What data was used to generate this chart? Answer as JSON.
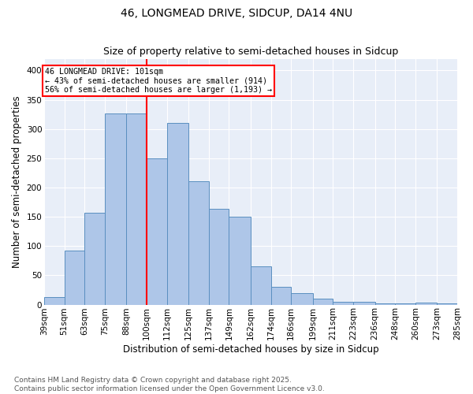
{
  "title1": "46, LONGMEAD DRIVE, SIDCUP, DA14 4NU",
  "title2": "Size of property relative to semi-detached houses in Sidcup",
  "xlabel": "Distribution of semi-detached houses by size in Sidcup",
  "ylabel": "Number of semi-detached properties",
  "bin_edges": [
    39,
    51,
    63,
    75,
    88,
    100,
    112,
    125,
    137,
    149,
    162,
    174,
    186,
    199,
    211,
    223,
    236,
    248,
    260,
    273,
    285
  ],
  "bin_labels": [
    "39sqm",
    "51sqm",
    "63sqm",
    "75sqm",
    "88sqm",
    "100sqm",
    "112sqm",
    "125sqm",
    "137sqm",
    "149sqm",
    "162sqm",
    "174sqm",
    "186sqm",
    "199sqm",
    "211sqm",
    "223sqm",
    "236sqm",
    "248sqm",
    "260sqm",
    "273sqm",
    "285sqm"
  ],
  "bar_heights": [
    13,
    92,
    157,
    326,
    326,
    250,
    311,
    211,
    163,
    150,
    65,
    30,
    20,
    10,
    5,
    5,
    2,
    2,
    3,
    2
  ],
  "bar_color": "#aec6e8",
  "bar_edge_color": "#5a8fc0",
  "vline_x": 100,
  "vline_color": "red",
  "annotation_title": "46 LONGMEAD DRIVE: 101sqm",
  "annotation_line1": "← 43% of semi-detached houses are smaller (914)",
  "annotation_line2": "56% of semi-detached houses are larger (1,193) →",
  "annotation_box_color": "white",
  "annotation_box_edge": "red",
  "ylim": [
    0,
    420
  ],
  "yticks": [
    0,
    50,
    100,
    150,
    200,
    250,
    300,
    350,
    400
  ],
  "background_color": "#e8eef8",
  "footer1": "Contains HM Land Registry data © Crown copyright and database right 2025.",
  "footer2": "Contains public sector information licensed under the Open Government Licence v3.0.",
  "title_fontsize": 10,
  "axis_label_fontsize": 8.5,
  "tick_fontsize": 7.5,
  "footer_fontsize": 6.5
}
